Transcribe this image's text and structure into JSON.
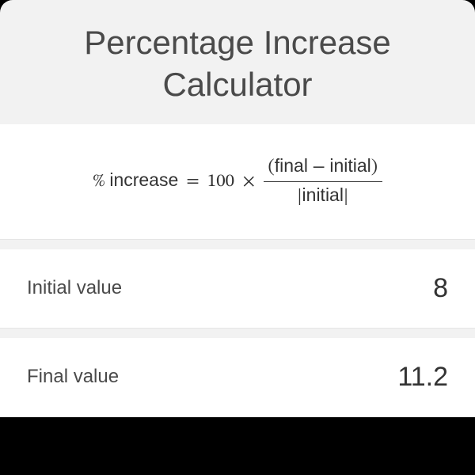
{
  "title": "Percentage Increase Calculator",
  "formula": {
    "lhs_symbol": "%",
    "lhs_text": "increase",
    "equals": "=",
    "multiplier": "100",
    "times": "×",
    "numerator_open": "(",
    "numerator_final": "final",
    "numerator_minus": "−",
    "numerator_initial": "initial",
    "numerator_close": ")",
    "denominator_open": "|",
    "denominator_text": "initial",
    "denominator_close": "|"
  },
  "inputs": {
    "initial": {
      "label": "Initial value",
      "value": "8"
    },
    "final": {
      "label": "Final value",
      "value": "11.2"
    }
  },
  "colors": {
    "card_bg": "#f2f2f2",
    "row_bg": "#ffffff",
    "title_color": "#4a4a4a",
    "text_color": "#333333",
    "border_color": "#e5e5e5",
    "page_bg": "#000000"
  }
}
